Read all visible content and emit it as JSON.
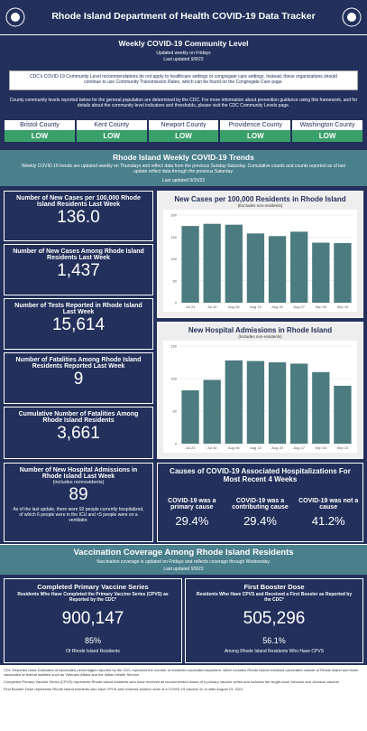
{
  "header": {
    "title": "Rhode Island Department of Health COVID-19 Data Tracker"
  },
  "community": {
    "title": "Weekly COVID-19 Community Level",
    "updated1": "Updated weekly on Fridays",
    "updated2": "Last updated 9/9/22",
    "note": "CDC's COVID-19 Community Level recommendations do not apply to healthcare settings or congregate care settings. Instead, these organizations should continue to use Community Transmission Rates, which can be found on the Congregate Care page.",
    "info": "County community levels reported below for the general population are determined by the CDC. For more information about prevention guidance using this framework, and for details about the community level indicators and thresholds, please visit the CDC Community Levels page.",
    "counties": [
      {
        "name": "Bristol County",
        "level": "LOW"
      },
      {
        "name": "Kent County",
        "level": "LOW"
      },
      {
        "name": "Newport County",
        "level": "LOW"
      },
      {
        "name": "Providence County",
        "level": "LOW"
      },
      {
        "name": "Washington County",
        "level": "LOW"
      }
    ]
  },
  "trends": {
    "title": "Rhode Island Weekly COVID-19 Trends",
    "subtitle": "Weekly COVID-19 trends are updated weekly on Thursdays and reflect data from the previous Sunday-Saturday. Cumulative counts and counts reported as of last update reflect data through the previous Saturday.",
    "updated": "Last updated 9/15/22"
  },
  "metrics": [
    {
      "label": "Number of New Cases per 100,000 Rhode Island Residents Last Week",
      "value": "136.0"
    },
    {
      "label": "Number of New Cases Among Rhode Island Residents Last Week",
      "value": "1,437"
    },
    {
      "label": "Number of Tests Reported in Rhode Island Last Week",
      "value": "15,614"
    },
    {
      "label": "Number of Fatalities Among Rhode Island Residents Reported Last Week",
      "value": "9"
    },
    {
      "label": "Cumulative Number of Fatalities Among Rhode Island Residents",
      "value": "3,661"
    }
  ],
  "hospital_card": {
    "label": "Number of New Hospital Admissions in Rhode Island Last Week",
    "sublabel": "(includes nonresidents)",
    "value": "89",
    "note": "As of the last update, there were 92 people currently hospitalized, of which 6 people were in the ICU and <5 people were on a ventilator."
  },
  "charts": [
    {
      "type": "bar",
      "title": "New Cases per 100,000 Residents in Rhode Island",
      "subtitle": "(Excludes non-residents)",
      "categories": [
        "Jul 23",
        "Jul 30",
        "Aug 06",
        "Aug 13",
        "Aug 20",
        "Aug 27",
        "Sep 03",
        "Sep 10"
      ],
      "values": [
        175,
        180,
        178,
        158,
        152,
        162,
        137,
        136
      ],
      "ylim": [
        0,
        200
      ],
      "yticks": [
        0,
        50,
        100,
        150,
        200
      ],
      "color": "#4c7b80",
      "grid": true
    },
    {
      "type": "bar",
      "title": "New Hospital Admissions in Rhode Island",
      "subtitle": "(Includes non-residents)",
      "categories": [
        "Jul 23",
        "Jul 30",
        "Aug 06",
        "Aug 13",
        "Aug 20",
        "Aug 27",
        "Sep 03",
        "Sep 10"
      ],
      "values": [
        82,
        98,
        128,
        127,
        125,
        123,
        110,
        89
      ],
      "ylim": [
        0,
        150
      ],
      "yticks": [
        0,
        50,
        100,
        150
      ],
      "color": "#4c7b80",
      "grid": true
    }
  ],
  "causes": {
    "title": "Causes of COVID-19 Associated Hospitalizations For Most Recent 4 Weeks",
    "items": [
      {
        "label": "COVID-19 was a primary cause",
        "value": "29.4%"
      },
      {
        "label": "COVID-19 was a contributing cause",
        "value": "29.4%"
      },
      {
        "label": "COVID-19 was not a cause",
        "value": "41.2%"
      }
    ]
  },
  "vaccination": {
    "title": "Vaccination Coverage Among Rhode Island Residents",
    "subtitle": "Vaccination coverage is updated on Fridays and reflects coverage through Wednesday.",
    "updated": "Last updated 9/9/22",
    "cards": [
      {
        "title": "Completed Primary Vaccine Series",
        "subtitle": "Residents Who Have Completed the Primary Vaccine Series (CPVS) as Reported by the CDC*",
        "value": "900,147",
        "percent": "85%",
        "caption": "Of Rhode Island Residents"
      },
      {
        "title": "First Booster Dose",
        "subtitle": "Residents Who Have CPVS and Received a First Booster as Reported by the CDC*",
        "value": "505,296",
        "percent": "56.1%",
        "caption": "Among Rhode Island Residents Who Have CPVS"
      }
    ]
  },
  "footnotes": [
    "CDC Reported Data: Estimates of vaccinated percentages reported by the CDC represent the number of residents vaccinated anywhere, which includes Rhode Island residents vaccinated outside of Rhode Island and those vaccinated at federal facilities such as Veterans Affairs and the Indian Health Service.",
    "Completed Primary Vaccine Series (CPVS) represents Rhode Island residents who have received all recommended doses of a primary vaccine series and includes the single-dose Johnson and Johnson vaccine.",
    "First Booster Dose represents Rhode Island residents who have CPVS and received another dose of a COVID-19 vaccine on or after August 13, 2021."
  ]
}
